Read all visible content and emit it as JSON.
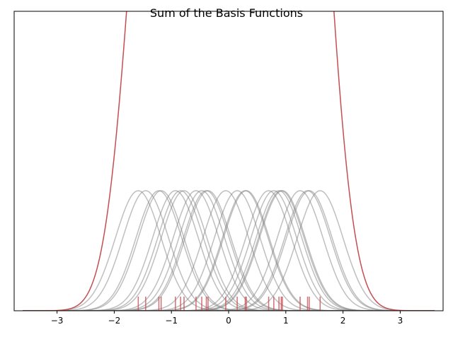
{
  "chart_data": {
    "type": "line",
    "title": "Sum of the Basis Functions",
    "xlabel": "",
    "ylabel": "",
    "xlim": [
      -3.75,
      3.75
    ],
    "x_ticks": [
      -3,
      -2,
      -1,
      0,
      1,
      2,
      3
    ],
    "x_tick_labels": [
      "−3",
      "−2",
      "−1",
      "0",
      "1",
      "2",
      "3"
    ],
    "y_ticks_visible": false,
    "basis": {
      "kind": "gaussian",
      "x_range": [
        -3.6,
        3.6
      ],
      "peak_relative": 0.4,
      "width_sigma": 0.4
    },
    "data_points": [
      -1.58,
      -1.45,
      -1.22,
      -1.18,
      -0.93,
      -0.84,
      -0.78,
      -0.57,
      -0.47,
      -0.39,
      -0.36,
      -0.05,
      0.15,
      0.29,
      0.31,
      0.7,
      0.79,
      0.88,
      0.92,
      0.94,
      1.25,
      1.38,
      1.41,
      1.6
    ],
    "colors": {
      "basis": "#7f7f7f",
      "sum": "#c44e52",
      "rug": "#c44e52"
    },
    "grid": false,
    "legend": "none"
  }
}
